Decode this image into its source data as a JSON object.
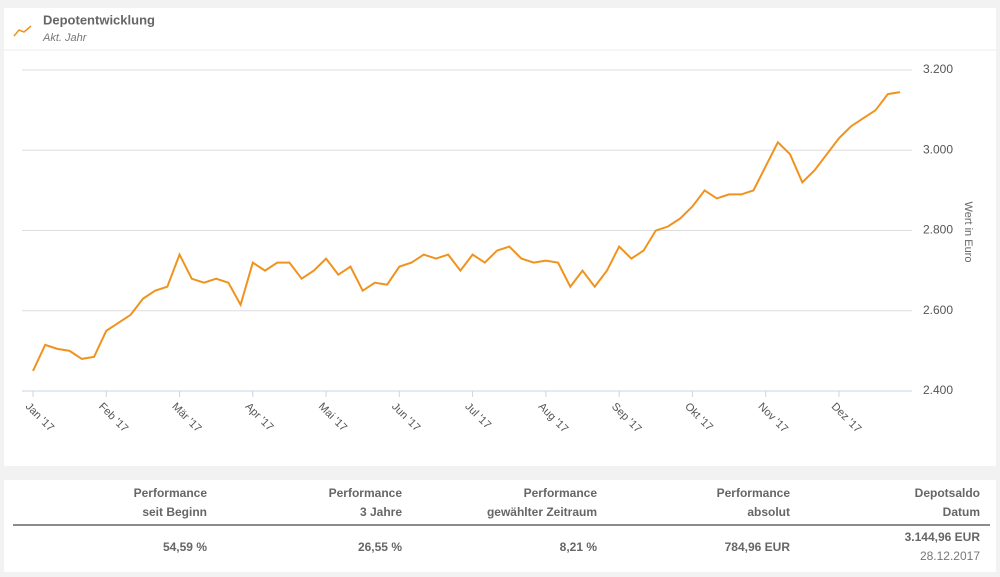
{
  "header": {
    "title": "Depotentwicklung",
    "subtitle": "Akt. Jahr"
  },
  "chart_data": {
    "type": "line",
    "y_label": "Wert in Euro",
    "categories": [
      "Jan '17",
      null,
      null,
      null,
      null,
      null,
      "Feb '17",
      null,
      null,
      null,
      null,
      null,
      "Mär '17",
      null,
      null,
      null,
      null,
      null,
      "Apr '17",
      null,
      null,
      null,
      null,
      null,
      "Mai '17",
      null,
      null,
      null,
      null,
      null,
      "Jun '17",
      null,
      null,
      null,
      null,
      null,
      "Jul '17",
      null,
      null,
      null,
      null,
      null,
      "Aug '17",
      null,
      null,
      null,
      null,
      null,
      "Sep '17",
      null,
      null,
      null,
      null,
      null,
      "Okt '17",
      null,
      null,
      null,
      null,
      null,
      "Nov '17",
      null,
      null,
      null,
      null,
      null,
      "Dez '17",
      null,
      null,
      null,
      null,
      null
    ],
    "series": [
      {
        "name": "Depotentwicklung",
        "color": "#f0931e",
        "values": [
          2450,
          2515,
          2505,
          2500,
          2480,
          2485,
          2550,
          2570,
          2590,
          2630,
          2650,
          2660,
          2740,
          2680,
          2670,
          2680,
          2670,
          2615,
          2720,
          2700,
          2720,
          2720,
          2680,
          2700,
          2730,
          2690,
          2710,
          2650,
          2670,
          2665,
          2710,
          2720,
          2740,
          2730,
          2740,
          2700,
          2740,
          2720,
          2750,
          2760,
          2730,
          2720,
          2725,
          2720,
          2660,
          2700,
          2660,
          2700,
          2760,
          2730,
          2750,
          2800,
          2810,
          2830,
          2860,
          2900,
          2880,
          2890,
          2890,
          2900,
          2960,
          3020,
          2990,
          2920,
          2950,
          2990,
          3030,
          3060,
          3080,
          3100,
          3140,
          3145
        ]
      }
    ],
    "ylim": [
      2400,
      3250
    ],
    "yticks": [
      {
        "value": 2400,
        "label": "2.400"
      },
      {
        "value": 2600,
        "label": "2.600"
      },
      {
        "value": 2800,
        "label": "2.800"
      },
      {
        "value": 3000,
        "label": "3.000"
      },
      {
        "value": 3200,
        "label": "3.200"
      }
    ],
    "grid": true
  },
  "table": {
    "header": [
      [
        "Performance",
        "seit Beginn"
      ],
      [
        "Performance",
        "3 Jahre"
      ],
      [
        "Performance",
        "gewählter Zeitraum"
      ],
      [
        "Performance",
        "absolut"
      ],
      [
        "Depotsaldo",
        "Datum"
      ]
    ],
    "rows": [
      [
        [
          "54,59 %"
        ],
        [
          "26,55 %"
        ],
        [
          "8,21 %"
        ],
        [
          "784,96 EUR"
        ],
        [
          "3.144,96 EUR",
          "28.12.2017"
        ]
      ]
    ]
  }
}
